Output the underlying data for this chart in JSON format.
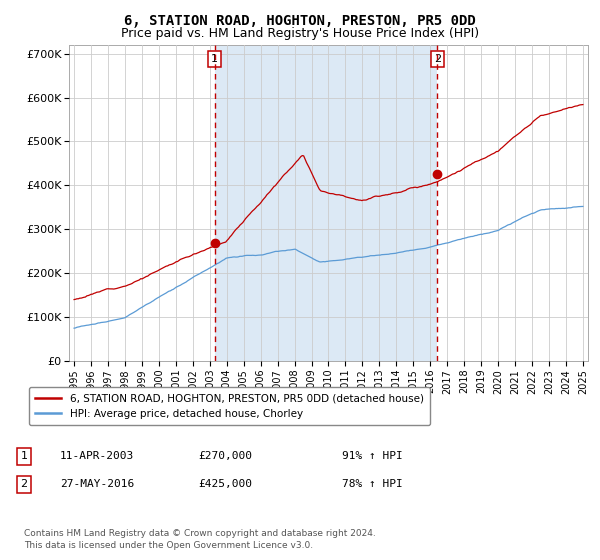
{
  "title": "6, STATION ROAD, HOGHTON, PRESTON, PR5 0DD",
  "subtitle": "Price paid vs. HM Land Registry's House Price Index (HPI)",
  "title_fontsize": 10,
  "subtitle_fontsize": 9,
  "ylim": [
    0,
    720000
  ],
  "yticks": [
    0,
    100000,
    200000,
    300000,
    400000,
    500000,
    600000,
    700000
  ],
  "ytick_labels": [
    "£0",
    "£100K",
    "£200K",
    "£300K",
    "£400K",
    "£500K",
    "£600K",
    "£700K"
  ],
  "hpi_color": "#5b9bd5",
  "price_color": "#c00000",
  "dashed_line_color": "#c00000",
  "shade_color": "#dce9f5",
  "sale1_year": 2003.28,
  "sale1_price": 270000,
  "sale2_year": 2016.41,
  "sale2_price": 425000,
  "legend_house": "6, STATION ROAD, HOGHTON, PRESTON, PR5 0DD (detached house)",
  "legend_hpi": "HPI: Average price, detached house, Chorley",
  "note1_date": "11-APR-2003",
  "note1_price": "£270,000",
  "note1_hpi": "91% ↑ HPI",
  "note2_date": "27-MAY-2016",
  "note2_price": "£425,000",
  "note2_hpi": "78% ↑ HPI",
  "footer": "Contains HM Land Registry data © Crown copyright and database right 2024.\nThis data is licensed under the Open Government Licence v3.0.",
  "background_color": "#ffffff",
  "grid_color": "#cccccc"
}
